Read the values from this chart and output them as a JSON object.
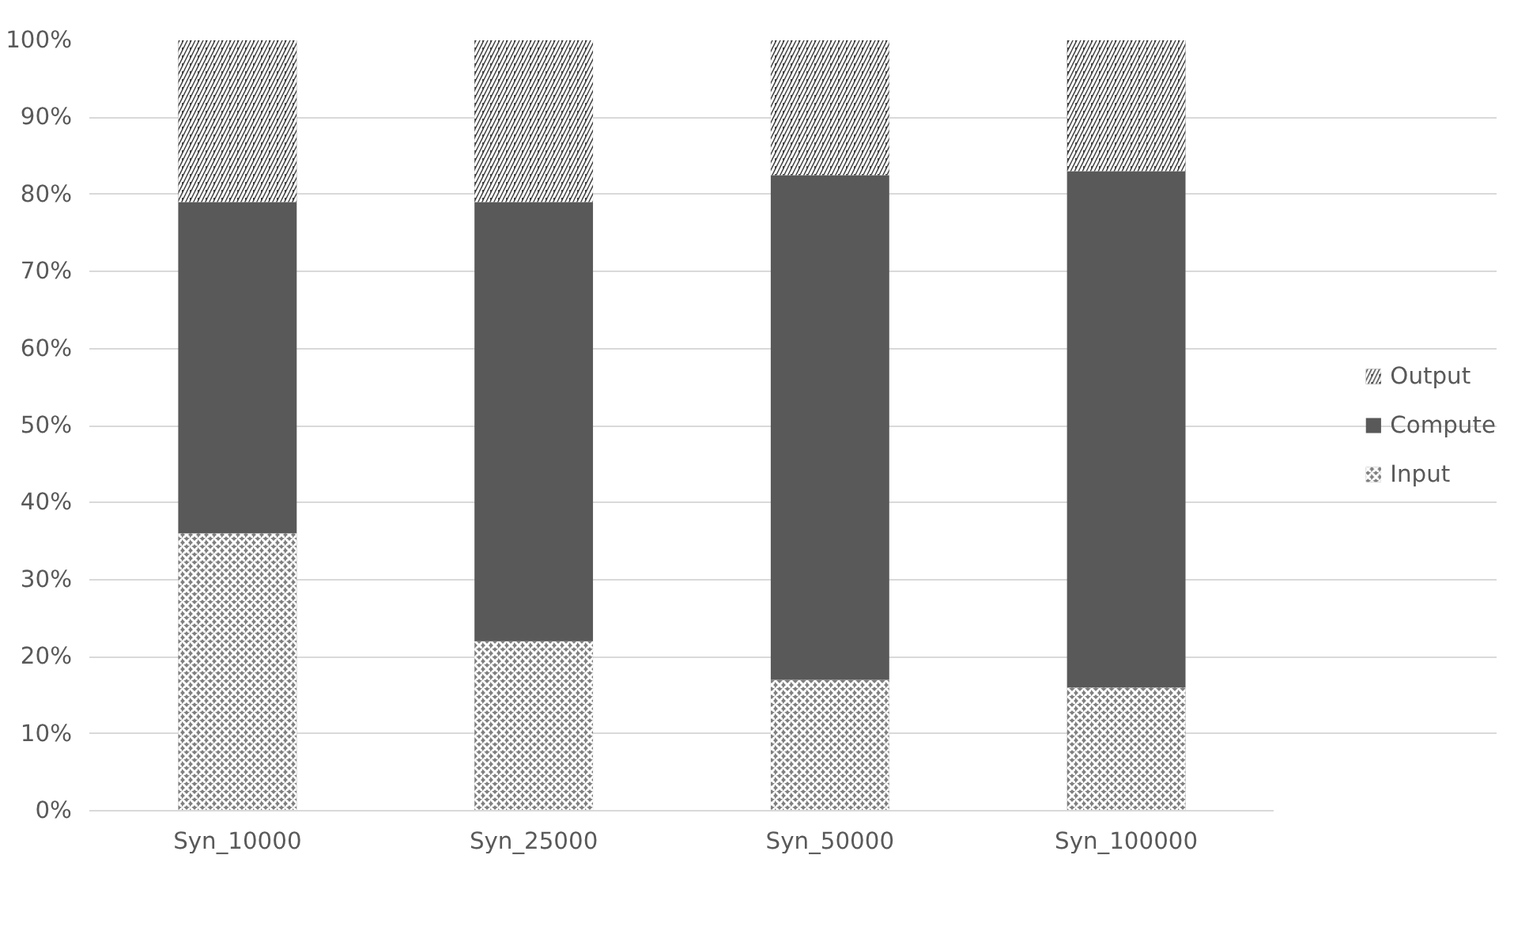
{
  "chart_data": {
    "type": "bar",
    "stacked": true,
    "categories": [
      "Syn_10000",
      "Syn_25000",
      "Syn_50000",
      "Syn_100000"
    ],
    "series": [
      {
        "name": "Input",
        "color": "#7f7f7f",
        "values": [
          36,
          22,
          17,
          16
        ]
      },
      {
        "name": "Compute",
        "color": "#595959",
        "values": [
          43,
          57,
          65.5,
          67
        ]
      },
      {
        "name": "Output",
        "color": "#404040",
        "values": [
          21,
          21,
          17.5,
          17
        ]
      }
    ],
    "ylim": [
      0,
      100
    ],
    "yticks": [
      {
        "value": 0,
        "label": "0%"
      },
      {
        "value": 10,
        "label": "10%"
      },
      {
        "value": 20,
        "label": "20%"
      },
      {
        "value": 30,
        "label": "30%"
      },
      {
        "value": 40,
        "label": "40%"
      },
      {
        "value": 50,
        "label": "50%"
      },
      {
        "value": 60,
        "label": "60%"
      },
      {
        "value": 70,
        "label": "70%"
      },
      {
        "value": 80,
        "label": "80%"
      },
      {
        "value": 90,
        "label": "90%"
      },
      {
        "value": 100,
        "label": "100%"
      }
    ],
    "grid": "y",
    "legend": "right"
  }
}
